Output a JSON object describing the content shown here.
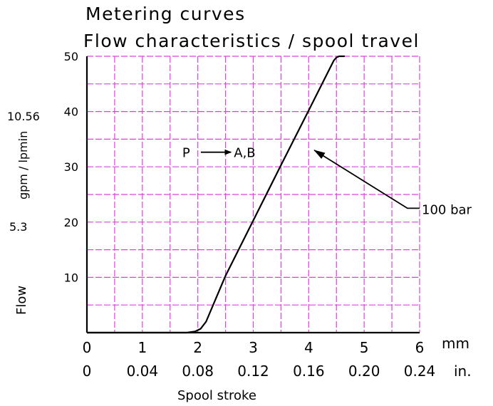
{
  "chart_data": {
    "type": "line",
    "title": "Metering curves",
    "subtitle": "Flow characteristics / spool travel",
    "xlabel": "Spool stroke",
    "xlim": [
      0,
      6
    ],
    "ylim": [
      0,
      50
    ],
    "x_ticks": [
      0,
      1,
      2,
      3,
      4,
      5,
      6
    ],
    "x_unit": "mm",
    "x_ticks_secondary": [
      "0",
      "0.04",
      "0.08",
      "0.12",
      "0.16",
      "0.20",
      "0.24"
    ],
    "x_unit_secondary": "in.",
    "y_ticks": [
      10,
      20,
      30,
      40,
      50
    ],
    "ylabel": "Flow",
    "y_unit": "gpm / lpmin",
    "y_secondary_labels": [
      {
        "text": "10.56",
        "at": 40
      },
      {
        "text": "5.3",
        "at": 20
      }
    ],
    "grid": true,
    "series": [
      {
        "name": "100 bar",
        "x": [
          0,
          1.8,
          1.95,
          2.05,
          2.15,
          2.5,
          3.0,
          3.5,
          4.0,
          4.45,
          4.5,
          4.55,
          4.65
        ],
        "y": [
          0,
          0,
          0.2,
          0.7,
          2.0,
          10.3,
          20.3,
          30.3,
          40.2,
          49.2,
          49.8,
          50,
          50
        ]
      }
    ],
    "annotations": [
      {
        "text": "P",
        "x": 1.72,
        "y": 32
      },
      {
        "text": "A,B",
        "x": 2.65,
        "y": 32
      },
      {
        "text": "100 bar",
        "leader_from": [
          6,
          22.5
        ],
        "leader_to": [
          4.1,
          33
        ]
      }
    ],
    "colors": {
      "grid": "#e040e0",
      "line": "#000000"
    }
  }
}
